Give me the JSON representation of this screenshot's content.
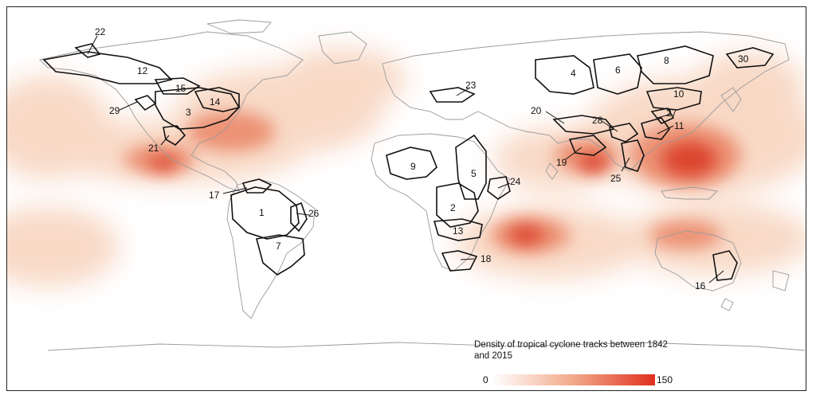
{
  "legend": {
    "title": "Density of tropical cyclone tracks between 1842 and 2015",
    "min_label": "0",
    "max_label": "150",
    "color_low": "#ffffff",
    "color_high": "#e0301e"
  },
  "map": {
    "land_outline_color": "#9a9a9a",
    "basin_outline_color": "#111111",
    "basins": [
      {
        "id": "1",
        "label": "1"
      },
      {
        "id": "2",
        "label": "2"
      },
      {
        "id": "3",
        "label": "3"
      },
      {
        "id": "4",
        "label": "4"
      },
      {
        "id": "5",
        "label": "5"
      },
      {
        "id": "6",
        "label": "6"
      },
      {
        "id": "7",
        "label": "7"
      },
      {
        "id": "8",
        "label": "8"
      },
      {
        "id": "9",
        "label": "9"
      },
      {
        "id": "10",
        "label": "10"
      },
      {
        "id": "11",
        "label": "11"
      },
      {
        "id": "12",
        "label": "12"
      },
      {
        "id": "13",
        "label": "13"
      },
      {
        "id": "14",
        "label": "14"
      },
      {
        "id": "15",
        "label": "15"
      },
      {
        "id": "16",
        "label": "16"
      },
      {
        "id": "17",
        "label": "17"
      },
      {
        "id": "18",
        "label": "18"
      },
      {
        "id": "19",
        "label": "19"
      },
      {
        "id": "20",
        "label": "20"
      },
      {
        "id": "21",
        "label": "21"
      },
      {
        "id": "22",
        "label": "22"
      },
      {
        "id": "23",
        "label": "23"
      },
      {
        "id": "24",
        "label": "24"
      },
      {
        "id": "25",
        "label": "25"
      },
      {
        "id": "26",
        "label": "26"
      },
      {
        "id": "27",
        "label": "27"
      },
      {
        "id": "28",
        "label": "28"
      },
      {
        "id": "29",
        "label": "29"
      },
      {
        "id": "30",
        "label": "30"
      }
    ]
  }
}
